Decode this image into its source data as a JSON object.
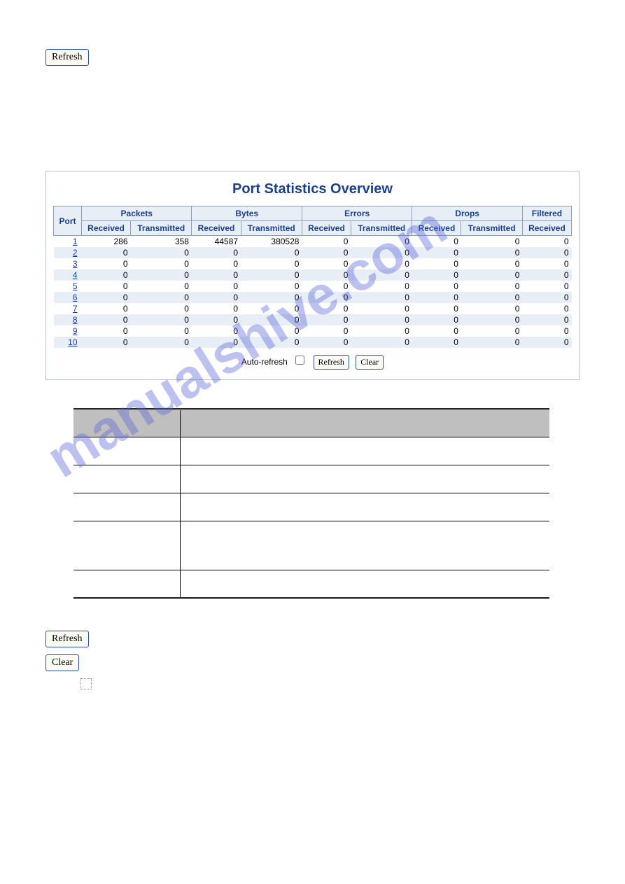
{
  "top_refresh_label": "Refresh",
  "panel": {
    "title": "Port Statistics Overview",
    "groups": [
      "Packets",
      "Bytes",
      "Errors",
      "Drops",
      "Filtered"
    ],
    "subheaders": {
      "port": "Port",
      "received": "Received",
      "transmitted": "Transmitted"
    },
    "rows": [
      {
        "port": "1",
        "pkt_rx": "286",
        "pkt_tx": "358",
        "byt_rx": "44587",
        "byt_tx": "380528",
        "err_rx": "0",
        "err_tx": "0",
        "drp_rx": "0",
        "drp_tx": "0",
        "flt_rx": "0"
      },
      {
        "port": "2",
        "pkt_rx": "0",
        "pkt_tx": "0",
        "byt_rx": "0",
        "byt_tx": "0",
        "err_rx": "0",
        "err_tx": "0",
        "drp_rx": "0",
        "drp_tx": "0",
        "flt_rx": "0"
      },
      {
        "port": "3",
        "pkt_rx": "0",
        "pkt_tx": "0",
        "byt_rx": "0",
        "byt_tx": "0",
        "err_rx": "0",
        "err_tx": "0",
        "drp_rx": "0",
        "drp_tx": "0",
        "flt_rx": "0"
      },
      {
        "port": "4",
        "pkt_rx": "0",
        "pkt_tx": "0",
        "byt_rx": "0",
        "byt_tx": "0",
        "err_rx": "0",
        "err_tx": "0",
        "drp_rx": "0",
        "drp_tx": "0",
        "flt_rx": "0"
      },
      {
        "port": "5",
        "pkt_rx": "0",
        "pkt_tx": "0",
        "byt_rx": "0",
        "byt_tx": "0",
        "err_rx": "0",
        "err_tx": "0",
        "drp_rx": "0",
        "drp_tx": "0",
        "flt_rx": "0"
      },
      {
        "port": "6",
        "pkt_rx": "0",
        "pkt_tx": "0",
        "byt_rx": "0",
        "byt_tx": "0",
        "err_rx": "0",
        "err_tx": "0",
        "drp_rx": "0",
        "drp_tx": "0",
        "flt_rx": "0"
      },
      {
        "port": "7",
        "pkt_rx": "0",
        "pkt_tx": "0",
        "byt_rx": "0",
        "byt_tx": "0",
        "err_rx": "0",
        "err_tx": "0",
        "drp_rx": "0",
        "drp_tx": "0",
        "flt_rx": "0"
      },
      {
        "port": "8",
        "pkt_rx": "0",
        "pkt_tx": "0",
        "byt_rx": "0",
        "byt_tx": "0",
        "err_rx": "0",
        "err_tx": "0",
        "drp_rx": "0",
        "drp_tx": "0",
        "flt_rx": "0"
      },
      {
        "port": "9",
        "pkt_rx": "0",
        "pkt_tx": "0",
        "byt_rx": "0",
        "byt_tx": "0",
        "err_rx": "0",
        "err_tx": "0",
        "drp_rx": "0",
        "drp_tx": "0",
        "flt_rx": "0"
      },
      {
        "port": "10",
        "pkt_rx": "0",
        "pkt_tx": "0",
        "byt_rx": "0",
        "byt_tx": "0",
        "err_rx": "0",
        "err_tx": "0",
        "drp_rx": "0",
        "drp_tx": "0",
        "flt_rx": "0"
      }
    ],
    "controls": {
      "auto_refresh_label": "Auto-refresh",
      "refresh_label": "Refresh",
      "clear_label": "Clear"
    }
  },
  "bottom": {
    "refresh_label": "Refresh",
    "clear_label": "Clear"
  },
  "watermark": "manualshive.com",
  "colors": {
    "header_bg": "#e7eef5",
    "header_text": "#1b3f8b",
    "border": "#8aa0b8",
    "btn_border": "#2a4fa8",
    "watermark": "#5a66d9"
  }
}
